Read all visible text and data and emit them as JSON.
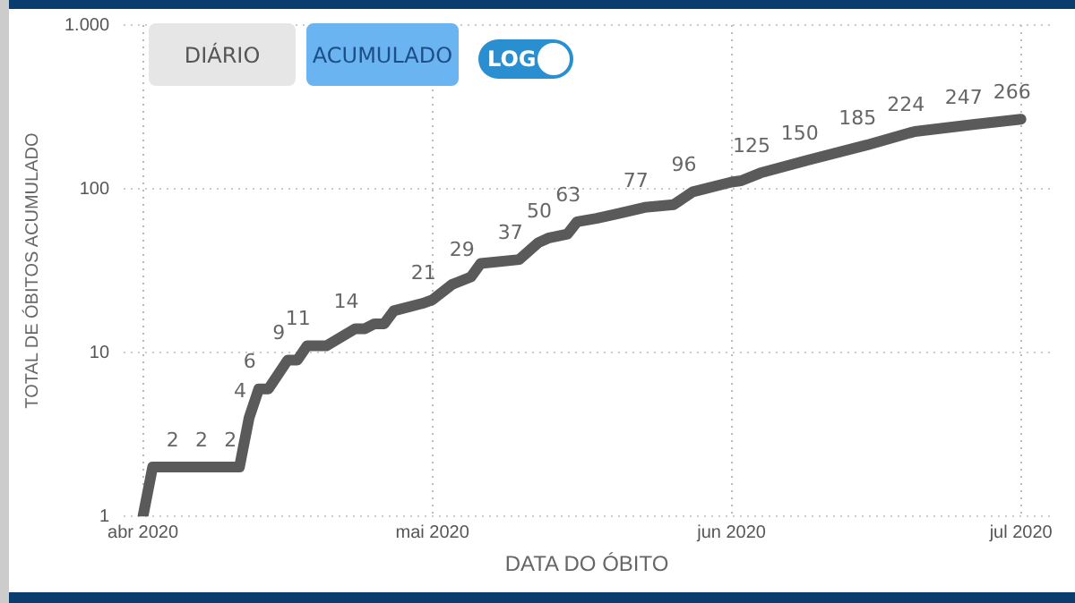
{
  "chart_data": {
    "type": "line",
    "xlabel": "DATA DO ÓBITO",
    "ylabel": "TOTAL DE ÓBITOS ACUMULADO",
    "annotations": [
      "DIÁRIO",
      "ACUMULADO",
      "LOG"
    ],
    "x": [
      "2020-04-01",
      "2020-04-02",
      "2020-04-05",
      "2020-04-08",
      "2020-04-11",
      "2020-04-12",
      "2020-04-13",
      "2020-04-14",
      "2020-04-16",
      "2020-04-17",
      "2020-04-18",
      "2020-04-20",
      "2020-04-23",
      "2020-04-24",
      "2020-04-25",
      "2020-04-26",
      "2020-04-27",
      "2020-04-30",
      "2020-05-01",
      "2020-05-03",
      "2020-05-05",
      "2020-05-06",
      "2020-05-10",
      "2020-05-12",
      "2020-05-13",
      "2020-05-15",
      "2020-05-16",
      "2020-05-18",
      "2020-05-20",
      "2020-05-23",
      "2020-05-26",
      "2020-05-28",
      "2020-06-01",
      "2020-06-02",
      "2020-06-04",
      "2020-06-09",
      "2020-06-15",
      "2020-06-20",
      "2020-06-26",
      "2020-07-01"
    ],
    "series": [
      {
        "color": "#5a5a5a",
        "values": [
          1,
          2,
          2,
          2,
          2,
          4,
          6,
          6,
          9,
          9,
          11,
          11,
          14,
          14,
          15,
          15,
          18,
          20,
          21,
          26,
          29,
          35,
          37,
          47,
          50,
          53,
          63,
          66,
          70,
          77,
          80,
          96,
          110,
          112,
          125,
          150,
          185,
          224,
          247,
          266
        ],
        "value_labels": [
          null,
          null,
          "2",
          "2",
          "2",
          "4",
          "6",
          null,
          "9",
          null,
          "11",
          null,
          "14",
          null,
          null,
          null,
          null,
          null,
          "21",
          null,
          "29",
          null,
          "37",
          null,
          "50",
          null,
          "63",
          null,
          null,
          "77",
          null,
          "96",
          null,
          null,
          "125",
          "150",
          "185",
          "224",
          "247",
          "266"
        ]
      }
    ],
    "log": "y",
    "ylim": [
      1,
      1000
    ],
    "yticks": [
      1,
      10,
      100,
      {
        "value": 1000,
        "label": "1.000"
      }
    ],
    "xlim": [
      "2020-03-30",
      "2020-07-04"
    ],
    "xticks": [
      {
        "value": "2020-04-01",
        "label": "abr 2020"
      },
      {
        "value": "2020-05-01",
        "label": "mai 2020"
      },
      {
        "value": "2020-06-01",
        "label": "jun 2020"
      },
      {
        "value": "2020-07-01",
        "label": "jul 2020"
      }
    ],
    "grid": true,
    "line_style": "solid",
    "marker": "none",
    "legend": false
  }
}
